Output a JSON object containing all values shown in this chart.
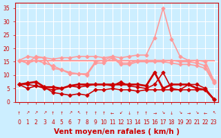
{
  "x": [
    0,
    1,
    2,
    3,
    4,
    5,
    6,
    7,
    8,
    9,
    10,
    11,
    12,
    13,
    14,
    15,
    16,
    17,
    18,
    19,
    20,
    21,
    22,
    23
  ],
  "arrow_labels": [
    "↑",
    "↗",
    "↗",
    "↗",
    "↑",
    "↑",
    "↗",
    "↖",
    "↑",
    "↑",
    "↑",
    "←",
    "↙",
    "↓",
    "↑",
    "↑",
    "→",
    "↘",
    "↓",
    "↘",
    "→",
    "↘",
    "←",
    "↖"
  ],
  "series": [
    {
      "values": [
        6.5,
        6.5,
        6.0,
        5.0,
        4.5,
        5.0,
        6.0,
        5.5,
        6.0,
        6.5,
        6.5,
        6.0,
        7.5,
        6.0,
        5.5,
        5.0,
        6.5,
        11.0,
        5.0,
        4.5,
        6.5,
        6.5,
        5.0,
        1.0
      ],
      "color": "#cc0000",
      "lw": 1.2,
      "marker": "D",
      "ms": 2.5
    },
    {
      "values": [
        6.5,
        5.0,
        6.0,
        5.5,
        3.5,
        3.0,
        2.5,
        3.0,
        2.5,
        4.5,
        4.5,
        5.0,
        4.5,
        4.5,
        4.0,
        4.5,
        4.5,
        4.5,
        4.5,
        4.5,
        4.5,
        4.5,
        4.5,
        1.0
      ],
      "color": "#cc0000",
      "lw": 1.2,
      "marker": "D",
      "ms": 2.5
    },
    {
      "values": [
        6.5,
        7.0,
        7.5,
        5.5,
        5.5,
        5.0,
        6.0,
        6.5,
        6.5,
        6.5,
        6.5,
        6.5,
        6.5,
        6.5,
        6.5,
        6.0,
        11.0,
        5.0,
        6.5,
        6.5,
        6.5,
        5.0,
        4.5,
        1.0
      ],
      "color": "#cc0000",
      "lw": 2.0,
      "marker": "D",
      "ms": 2.5
    },
    {
      "values": [
        15.5,
        14.5,
        17.0,
        16.5,
        12.5,
        12.0,
        11.0,
        10.5,
        10.5,
        15.0,
        15.5,
        17.0,
        14.5,
        14.5,
        15.5,
        15.5,
        15.5,
        15.5,
        15.5,
        15.0,
        15.0,
        14.5,
        13.5,
        7.5
      ],
      "color": "#ff9999",
      "lw": 1.2,
      "marker": "D",
      "ms": 2.5
    },
    {
      "values": [
        15.5,
        15.5,
        15.5,
        15.5,
        15.5,
        15.5,
        15.5,
        15.5,
        15.5,
        15.5,
        15.5,
        15.5,
        15.5,
        15.5,
        15.5,
        15.5,
        15.5,
        15.5,
        15.5,
        15.5,
        15.5,
        15.5,
        15.5,
        15.5
      ],
      "color": "#ff9999",
      "lw": 1.5,
      "marker": null,
      "ms": 0
    },
    {
      "values": [
        15.5,
        17.0,
        16.5,
        16.5,
        16.0,
        16.5,
        16.5,
        17.0,
        17.0,
        17.0,
        16.5,
        17.0,
        16.5,
        17.0,
        17.5,
        17.5,
        24.0,
        35.0,
        23.5,
        17.0,
        15.5,
        15.5,
        15.0,
        8.0
      ],
      "color": "#ff9999",
      "lw": 1.2,
      "marker": "D",
      "ms": 2.5
    },
    {
      "values": [
        15.5,
        14.5,
        15.5,
        14.5,
        13.5,
        12.0,
        10.5,
        10.5,
        10.0,
        14.5,
        14.5,
        16.5,
        14.0,
        14.0,
        15.0,
        15.0,
        15.0,
        15.0,
        14.5,
        14.0,
        14.0,
        13.5,
        12.5,
        7.0
      ],
      "color": "#ff9999",
      "lw": 1.2,
      "marker": "D",
      "ms": 2.5
    }
  ],
  "bg_color": "#cceeff",
  "grid_color": "#ffffff",
  "axis_color": "#cc0000",
  "text_color": "#cc0000",
  "xlabel": "Vent moyen/en rafales ( km/h )",
  "ylim": [
    0,
    37
  ],
  "yticks": [
    0,
    5,
    10,
    15,
    20,
    25,
    30,
    35
  ],
  "xticks": [
    0,
    1,
    2,
    3,
    4,
    5,
    6,
    7,
    8,
    9,
    10,
    11,
    12,
    13,
    14,
    15,
    16,
    17,
    18,
    19,
    20,
    21,
    22,
    23
  ],
  "tick_fontsize": 5.5,
  "xlabel_fontsize": 7.5
}
